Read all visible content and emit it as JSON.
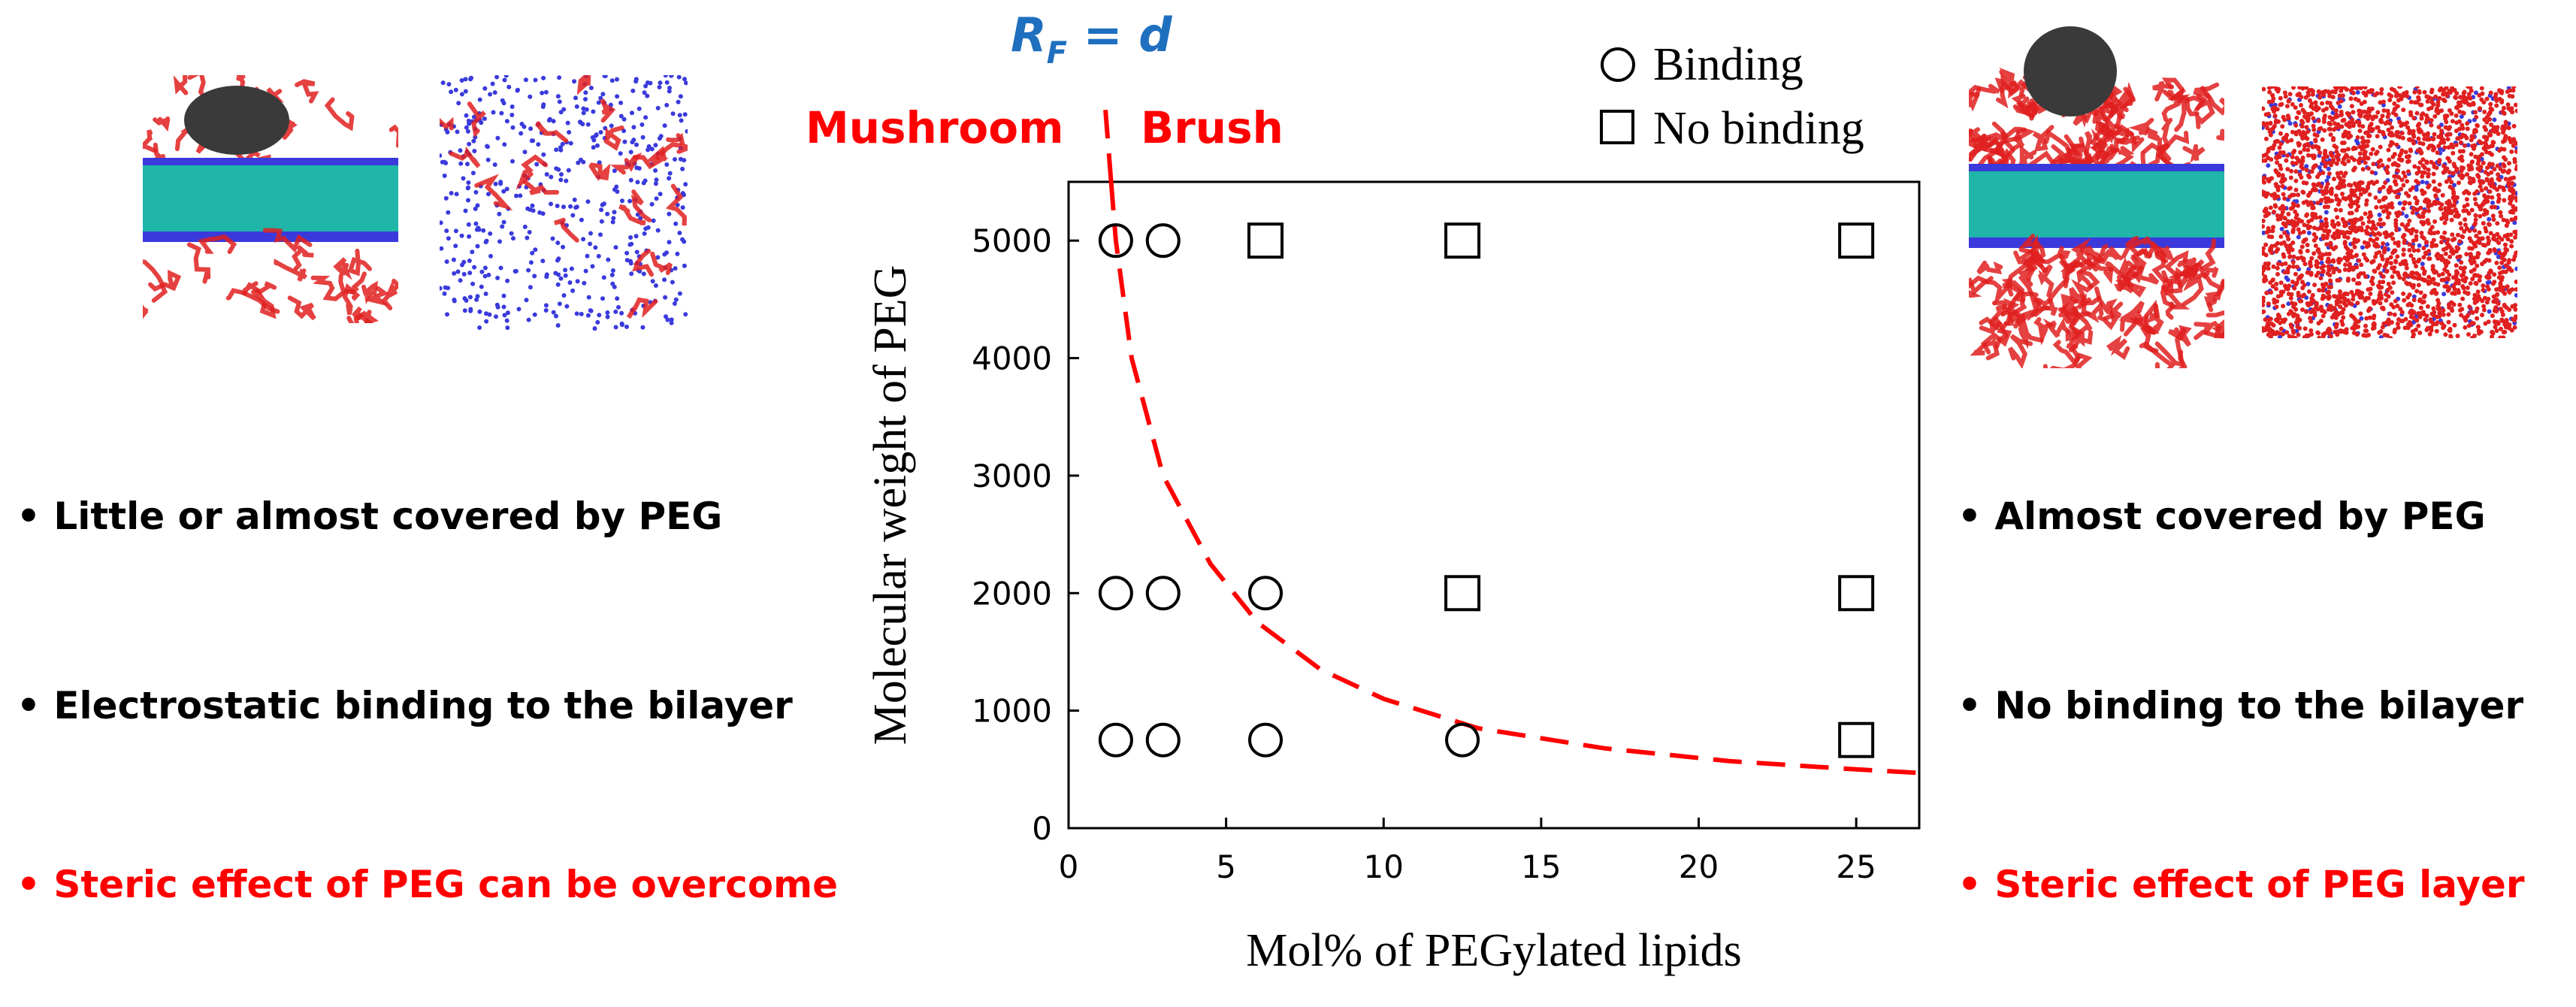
{
  "rf_label": {
    "main": "R",
    "sub": "F",
    "rest": " = d"
  },
  "regime_labels": {
    "left": "Mushroom",
    "right": "Brush"
  },
  "left_bullets": [
    "• Little or almost covered by PEG",
    "• Electrostatic binding to the bilayer",
    "• Steric effect of PEG can be overcome"
  ],
  "right_bullets": [
    "• Almost covered by PEG",
    "• No binding to the bilayer",
    "• Steric effect of PEG layer"
  ],
  "colors": {
    "emphasis": "#ff0000",
    "rf_label": "#1f6fbf",
    "curve": "#ff0000",
    "protein": "#3a3a3a",
    "bilayer": "#1fb5a8",
    "peg": "#e02020",
    "headgroup": "#3a3adc"
  },
  "chart_data": {
    "type": "scatter",
    "xlabel": "Mol% of PEGylated lipids",
    "ylabel": "Molecular weight of PEG",
    "xlim": [
      0,
      27
    ],
    "ylim": [
      0,
      5500
    ],
    "xticks": [
      0,
      5,
      10,
      15,
      20,
      25
    ],
    "yticks": [
      0,
      1000,
      2000,
      3000,
      4000,
      5000
    ],
    "grid": false,
    "legend_position": "top-right",
    "series": [
      {
        "name": "Binding",
        "marker": "circle",
        "points": [
          {
            "x": 1.5,
            "y": 5000
          },
          {
            "x": 3.0,
            "y": 5000
          },
          {
            "x": 1.5,
            "y": 2000
          },
          {
            "x": 3.0,
            "y": 2000
          },
          {
            "x": 6.25,
            "y": 2000
          },
          {
            "x": 1.5,
            "y": 750
          },
          {
            "x": 3.0,
            "y": 750
          },
          {
            "x": 6.25,
            "y": 750
          },
          {
            "x": 12.5,
            "y": 750
          }
        ]
      },
      {
        "name": "No binding",
        "marker": "square",
        "points": [
          {
            "x": 6.25,
            "y": 5000
          },
          {
            "x": 12.5,
            "y": 5000
          },
          {
            "x": 25,
            "y": 5000
          },
          {
            "x": 12.5,
            "y": 2000
          },
          {
            "x": 25,
            "y": 2000
          },
          {
            "x": 25,
            "y": 750
          }
        ]
      }
    ],
    "boundary_curve": {
      "style": "dashed",
      "points": [
        {
          "x": 1.35,
          "y": 5500
        },
        {
          "x": 1.5,
          "y": 5000
        },
        {
          "x": 2.0,
          "y": 4000
        },
        {
          "x": 3.0,
          "y": 3000
        },
        {
          "x": 4.5,
          "y": 2250
        },
        {
          "x": 6.0,
          "y": 1750
        },
        {
          "x": 8.0,
          "y": 1350
        },
        {
          "x": 10.0,
          "y": 1100
        },
        {
          "x": 13.0,
          "y": 850
        },
        {
          "x": 17.0,
          "y": 680
        },
        {
          "x": 21.0,
          "y": 570
        },
        {
          "x": 25.0,
          "y": 500
        },
        {
          "x": 27.0,
          "y": 470
        }
      ]
    }
  }
}
